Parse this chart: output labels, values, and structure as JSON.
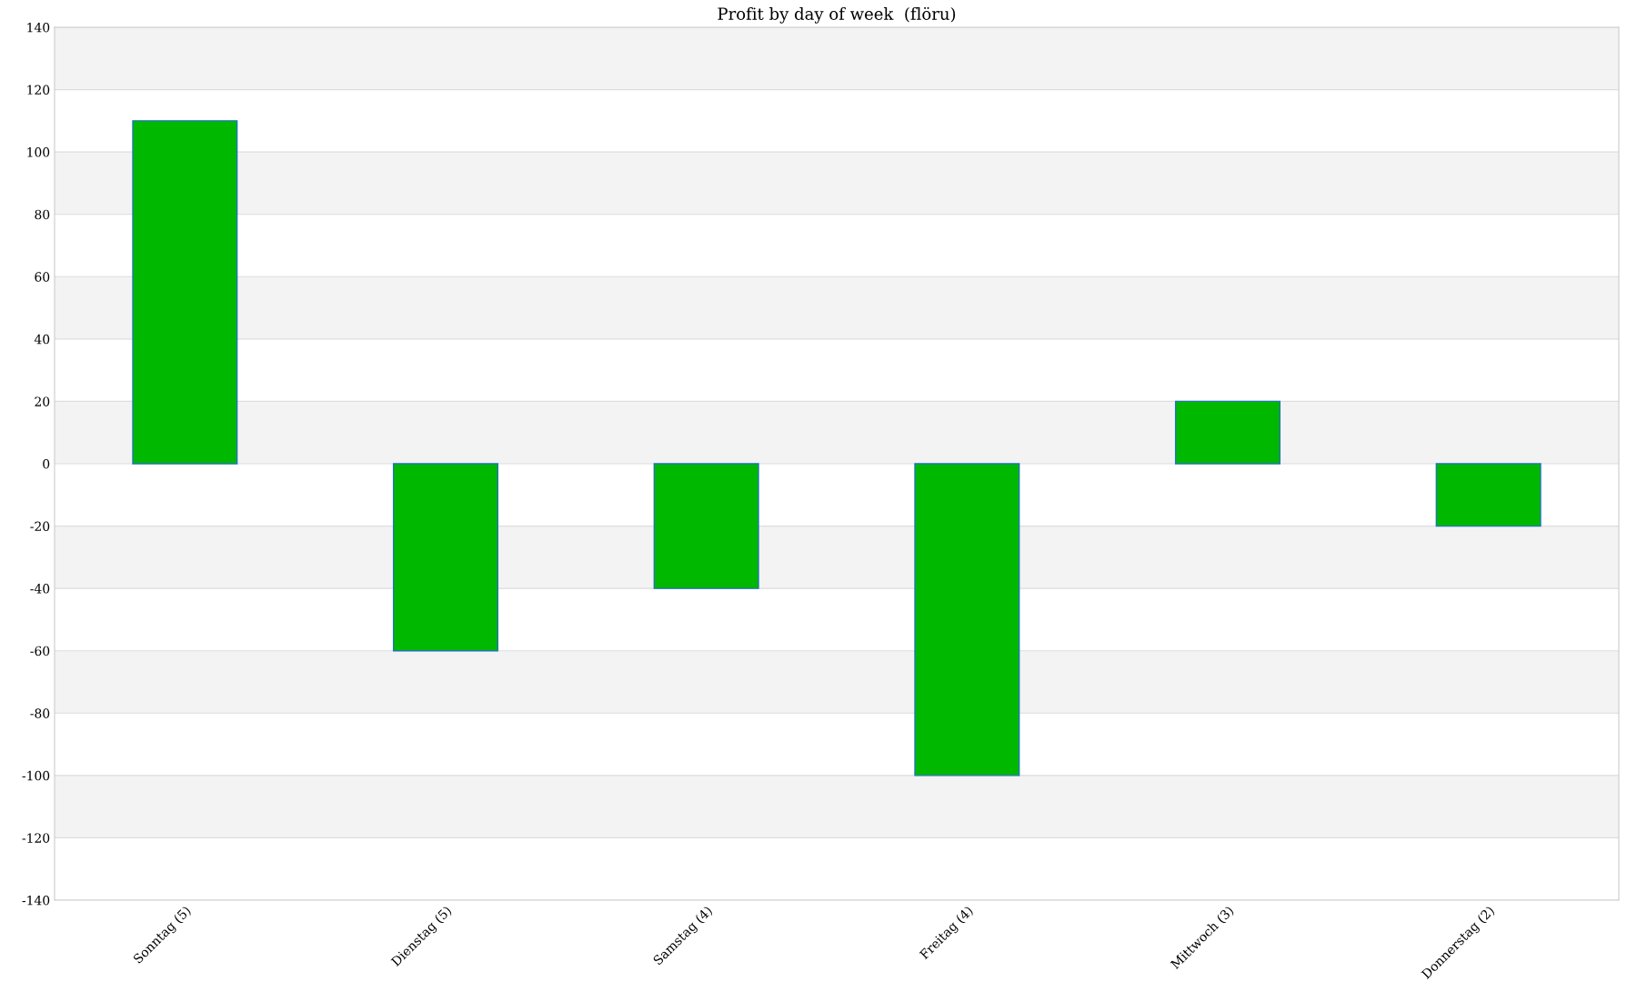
{
  "chart_data": {
    "type": "bar",
    "title": "Profit by day of week  (flöru)",
    "categories": [
      "Sonntag (5)",
      "Dienstag (5)",
      "Samstag (4)",
      "Freitag (4)",
      "Mittwoch (3)",
      "Donnerstag (2)"
    ],
    "values": [
      110,
      -60,
      -40,
      -100,
      20,
      -20
    ],
    "color": "#00b800",
    "ylim": [
      -140,
      140
    ],
    "yticks": [
      -140,
      -120,
      -100,
      -80,
      -60,
      -40,
      -20,
      0,
      20,
      40,
      60,
      80,
      100,
      120,
      140
    ],
    "grid": "y"
  }
}
